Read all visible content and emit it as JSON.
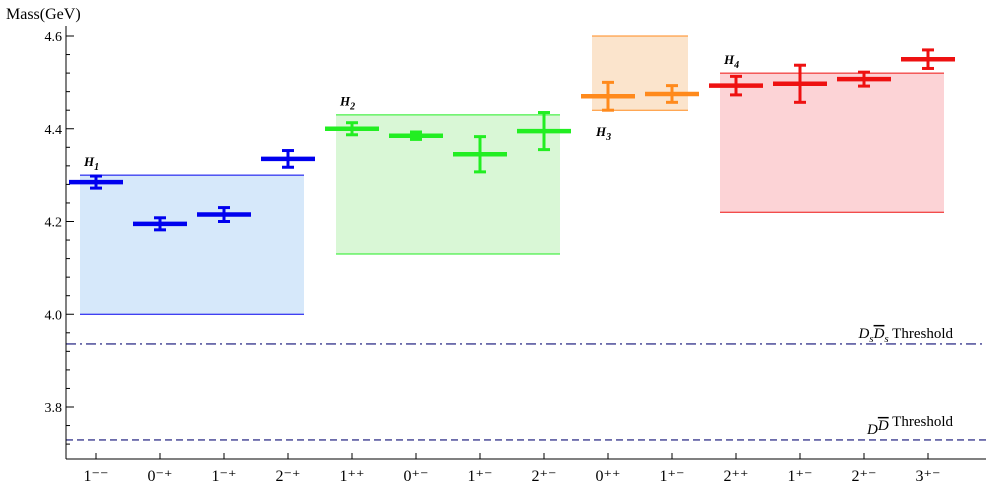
{
  "chart_data": {
    "type": "scatter",
    "ylabel": "Mass(GeV)",
    "ylim": [
      3.7,
      4.6
    ],
    "yticks": [
      3.8,
      4.0,
      4.2,
      4.4,
      4.6
    ],
    "ytick_labels": [
      "3.8",
      "4.0",
      "4.2",
      "4.4",
      "4.6"
    ],
    "categories": [
      "1⁻⁻",
      "0⁻⁺",
      "1⁻⁺",
      "2⁻⁺",
      "1⁺⁺",
      "0⁺⁻",
      "1⁺⁻",
      "2⁺⁻",
      "0⁺⁺",
      "1⁺⁻",
      "2⁺⁺",
      "1⁺⁻",
      "2⁺⁻",
      "3⁺⁻"
    ],
    "points": [
      {
        "x": 0,
        "y": 4.285,
        "err": 0.013,
        "group": 0
      },
      {
        "x": 1,
        "y": 4.195,
        "err": 0.013,
        "group": 0
      },
      {
        "x": 2,
        "y": 4.215,
        "err": 0.015,
        "group": 0
      },
      {
        "x": 3,
        "y": 4.335,
        "err": 0.018,
        "group": 0
      },
      {
        "x": 4,
        "y": 4.4,
        "err": 0.013,
        "group": 1
      },
      {
        "x": 5,
        "y": 4.385,
        "err": 0.008,
        "group": 1
      },
      {
        "x": 6,
        "y": 4.345,
        "err": 0.038,
        "group": 1
      },
      {
        "x": 7,
        "y": 4.395,
        "err": 0.04,
        "group": 1
      },
      {
        "x": 8,
        "y": 4.47,
        "err": 0.03,
        "group": 2
      },
      {
        "x": 9,
        "y": 4.475,
        "err": 0.018,
        "group": 2
      },
      {
        "x": 10,
        "y": 4.493,
        "err": 0.02,
        "group": 3
      },
      {
        "x": 11,
        "y": 4.497,
        "err": 0.04,
        "group": 3
      },
      {
        "x": 12,
        "y": 4.507,
        "err": 0.015,
        "group": 3
      },
      {
        "x": 13,
        "y": 4.55,
        "err": 0.02,
        "group": 3
      }
    ],
    "groups": [
      {
        "label": "H",
        "sub": "1",
        "x_from": 0,
        "x_to": 3,
        "y_low": 4.0,
        "y_high": 4.3,
        "color": "#0000ee",
        "fill": "#d6e8fa",
        "label_y": 4.32,
        "label_pos": "above"
      },
      {
        "label": "H",
        "sub": "2",
        "x_from": 4,
        "x_to": 7,
        "y_low": 4.13,
        "y_high": 4.43,
        "color": "#22ee22",
        "fill": "#d9f7d6",
        "label_y": 4.45,
        "label_pos": "above"
      },
      {
        "label": "H",
        "sub": "3",
        "x_from": 8,
        "x_to": 9,
        "y_low": 4.44,
        "y_high": 4.6,
        "color": "#ff8a1c",
        "fill": "#fbe4cc",
        "label_y": 4.4,
        "label_pos": "below"
      },
      {
        "label": "H",
        "sub": "4",
        "x_from": 10,
        "x_to": 13,
        "y_low": 4.22,
        "y_high": 4.52,
        "color": "#ee1111",
        "fill": "#fcd3d6",
        "label_y": 4.54,
        "label_pos": "above"
      }
    ],
    "thresholds": [
      {
        "y": 3.936,
        "style": "dashdot",
        "label_main": "D",
        "label_sub": "s",
        "label_bar": "D",
        "label_bar_sub": "s",
        "label_text": " Threshold"
      },
      {
        "y": 3.729,
        "style": "dashed",
        "label_main": "D",
        "label_sub": "",
        "label_bar": "D",
        "label_bar_sub": "",
        "label_text": " Threshold"
      }
    ],
    "threshold_color": "#3b3b8f",
    "grid": false
  }
}
